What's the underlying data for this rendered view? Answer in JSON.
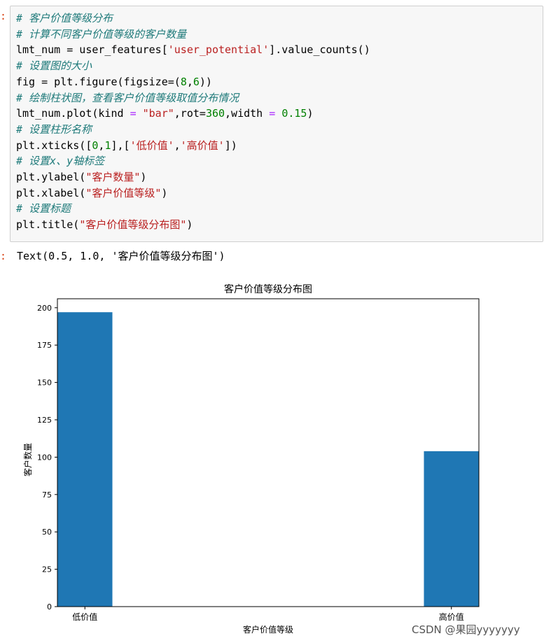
{
  "notebook": {
    "in_prompt": ":",
    "out_prompt": ":",
    "code_lines": [
      [
        {
          "t": "# 客户价值等级分布",
          "c": "cmt"
        }
      ],
      [
        {
          "t": "# 计算不同客户价值等级的客户数量",
          "c": "cmt"
        }
      ],
      [
        {
          "t": "lmt_num = user_features[",
          "c": ""
        },
        {
          "t": "'user_potential'",
          "c": "str"
        },
        {
          "t": "].value_counts()",
          "c": ""
        }
      ],
      [
        {
          "t": "# 设置图的大小",
          "c": "cmt"
        }
      ],
      [
        {
          "t": "fig = plt.figure(figsize=(",
          "c": ""
        },
        {
          "t": "8",
          "c": "num"
        },
        {
          "t": ",",
          "c": ""
        },
        {
          "t": "6",
          "c": "num"
        },
        {
          "t": "))",
          "c": ""
        }
      ],
      [
        {
          "t": "# 绘制柱状图，查看客户价值等级取值分布情况",
          "c": "cmt"
        }
      ],
      [
        {
          "t": "lmt_num.plot(kind ",
          "c": ""
        },
        {
          "t": "=",
          "c": "op"
        },
        {
          "t": " ",
          "c": ""
        },
        {
          "t": "\"bar\"",
          "c": "str"
        },
        {
          "t": ",rot=",
          "c": ""
        },
        {
          "t": "360",
          "c": "num"
        },
        {
          "t": ",width ",
          "c": ""
        },
        {
          "t": "=",
          "c": "op"
        },
        {
          "t": " ",
          "c": ""
        },
        {
          "t": "0.15",
          "c": "num"
        },
        {
          "t": ")",
          "c": ""
        }
      ],
      [
        {
          "t": "# 设置柱形名称",
          "c": "cmt"
        }
      ],
      [
        {
          "t": "plt.xticks([",
          "c": ""
        },
        {
          "t": "0",
          "c": "num"
        },
        {
          "t": ",",
          "c": ""
        },
        {
          "t": "1",
          "c": "num"
        },
        {
          "t": "],[",
          "c": ""
        },
        {
          "t": "'低价值'",
          "c": "str"
        },
        {
          "t": ",",
          "c": ""
        },
        {
          "t": "'高价值'",
          "c": "str"
        },
        {
          "t": "])",
          "c": ""
        }
      ],
      [
        {
          "t": "# 设置x、y轴标签",
          "c": "cmt"
        }
      ],
      [
        {
          "t": "plt.ylabel(",
          "c": ""
        },
        {
          "t": "\"客户数量\"",
          "c": "str"
        },
        {
          "t": ")",
          "c": ""
        }
      ],
      [
        {
          "t": "plt.xlabel(",
          "c": ""
        },
        {
          "t": "\"客户价值等级\"",
          "c": "str"
        },
        {
          "t": ")",
          "c": ""
        }
      ],
      [
        {
          "t": "# 设置标题",
          "c": "cmt"
        }
      ],
      [
        {
          "t": "plt.title(",
          "c": ""
        },
        {
          "t": "\"客户价值等级分布图\"",
          "c": "str"
        },
        {
          "t": ")",
          "c": ""
        }
      ]
    ],
    "output_text": "Text(0.5, 1.0, '客户价值等级分布图')"
  },
  "chart_data": {
    "type": "bar",
    "title": "客户价值等级分布图",
    "xlabel": "客户价值等级",
    "ylabel": "客户数量",
    "categories": [
      "低价值",
      "高价值"
    ],
    "values": [
      197,
      104
    ],
    "ylim": [
      0,
      206
    ],
    "yticks": [
      0,
      25,
      50,
      75,
      100,
      125,
      150,
      175,
      200
    ],
    "bar_color": "#1f77b4",
    "grid": false,
    "legend": "none"
  },
  "watermark": "CSDN @果园yyyyyyy"
}
